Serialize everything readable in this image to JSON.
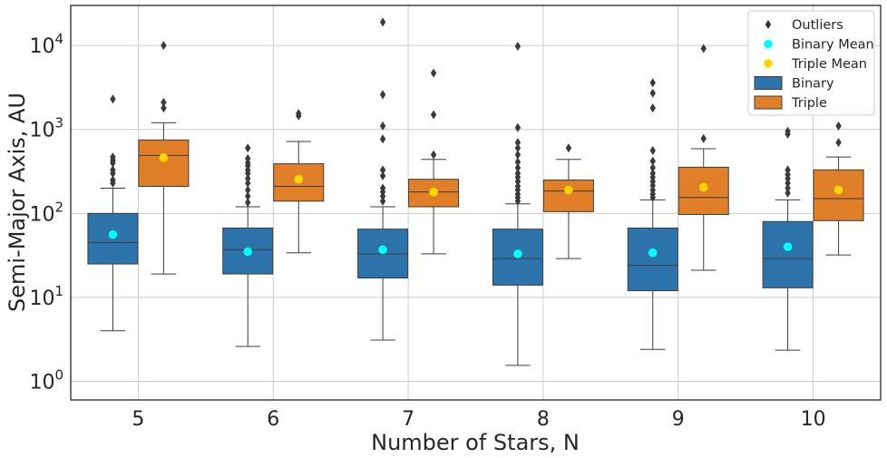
{
  "chart_data": {
    "type": "boxplot",
    "xlabel": "Number of Stars, N",
    "ylabel": "Semi-Major Axis, AU",
    "yscale": "log",
    "ylim": [
      0.6,
      30000
    ],
    "y_ticks": [
      {
        "value": 1,
        "base": "10",
        "exp": "0"
      },
      {
        "value": 10,
        "base": "10",
        "exp": "1"
      },
      {
        "value": 100,
        "base": "10",
        "exp": "2"
      },
      {
        "value": 1000,
        "base": "10",
        "exp": "3"
      },
      {
        "value": 10000,
        "base": "10",
        "exp": "4"
      }
    ],
    "categories": [
      "5",
      "6",
      "7",
      "8",
      "9",
      "10"
    ],
    "grid": true,
    "legend_position": "top-right",
    "legend": [
      {
        "label": "Outliers",
        "kind": "diamond",
        "color": "#333333"
      },
      {
        "label": "Binary Mean",
        "kind": "dot",
        "color": "#00ffff"
      },
      {
        "label": "Triple Mean",
        "kind": "dot",
        "color": "#ffd700"
      },
      {
        "label": "Binary",
        "kind": "patch",
        "color": "#2c74ab"
      },
      {
        "label": "Triple",
        "kind": "patch",
        "color": "#e07f28"
      }
    ],
    "series": [
      {
        "name": "Binary",
        "color": "#2c74ab",
        "mean_color": "#00ffff",
        "boxes": [
          {
            "whisker_low": 4,
            "q1": 25,
            "median": 45,
            "q3": 100,
            "whisker_high": 200,
            "mean": 56,
            "outliers": [
              230,
              250,
              300,
              330,
              400,
              430,
              470,
              2300
            ]
          },
          {
            "whisker_low": 2.6,
            "q1": 19,
            "median": 37,
            "q3": 67,
            "whisker_high": 120,
            "mean": 35,
            "outliers": [
              135,
              160,
              190,
              230,
              260,
              300,
              330,
              370,
              400,
              450,
              600
            ]
          },
          {
            "whisker_low": 3.1,
            "q1": 17,
            "median": 33,
            "q3": 65,
            "whisker_high": 120,
            "mean": 37,
            "outliers": [
              140,
              160,
              180,
              200,
              280,
              330,
              770,
              1100,
              2600,
              19000
            ]
          },
          {
            "whisker_low": 1.55,
            "q1": 14,
            "median": 29,
            "q3": 65,
            "whisker_high": 130,
            "mean": 33,
            "outliers": [
              140,
              155,
              170,
              190,
              210,
              240,
              270,
              300,
              350,
              410,
              500,
              600,
              700,
              1050,
              9800
            ]
          },
          {
            "whisker_low": 2.4,
            "q1": 12,
            "median": 24,
            "q3": 67,
            "whisker_high": 145,
            "mean": 34,
            "outliers": [
              155,
              170,
              190,
              215,
              240,
              270,
              300,
              350,
              420,
              560,
              1800,
              2700,
              3600
            ]
          },
          {
            "whisker_low": 2.35,
            "q1": 13,
            "median": 29,
            "q3": 80,
            "whisker_high": 145,
            "mean": 40,
            "outliers": [
              175,
              200,
              230,
              260,
              290,
              330,
              880,
              950
            ]
          }
        ]
      },
      {
        "name": "Triple",
        "color": "#e07f28",
        "mean_color": "#ffd700",
        "boxes": [
          {
            "whisker_low": 19,
            "q1": 210,
            "median": 490,
            "q3": 750,
            "whisker_high": 1200,
            "mean": 460,
            "outliers": [
              1800,
              2100,
              10000
            ]
          },
          {
            "whisker_low": 34,
            "q1": 140,
            "median": 210,
            "q3": 390,
            "whisker_high": 720,
            "mean": 255,
            "outliers": [
              1450,
              1550
            ]
          },
          {
            "whisker_low": 33,
            "q1": 120,
            "median": 180,
            "q3": 255,
            "whisker_high": 440,
            "mean": 180,
            "outliers": [
              500,
              1500,
              4700
            ]
          },
          {
            "whisker_low": 29,
            "q1": 105,
            "median": 185,
            "q3": 250,
            "whisker_high": 440,
            "mean": 190,
            "outliers": [
              600
            ]
          },
          {
            "whisker_low": 21,
            "q1": 97,
            "median": 155,
            "q3": 355,
            "whisker_high": 590,
            "mean": 205,
            "outliers": [
              780,
              9200
            ]
          },
          {
            "whisker_low": 32,
            "q1": 82,
            "median": 150,
            "q3": 330,
            "whisker_high": 470,
            "mean": 190,
            "outliers": [
              700,
              1100
            ]
          }
        ]
      }
    ]
  }
}
